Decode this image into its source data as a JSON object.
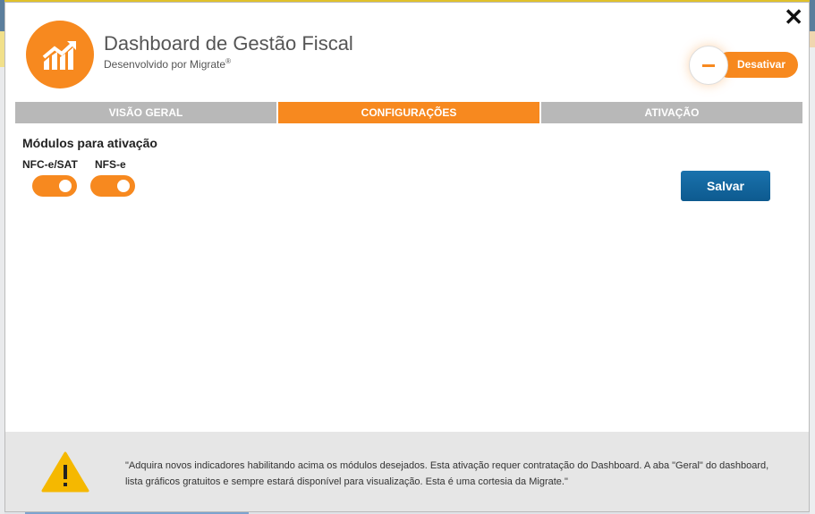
{
  "header": {
    "title": "Dashboard de Gestão Fiscal",
    "subtitle": "Desenvolvido por Migrate",
    "registered": "®",
    "deactivate_label": "Desativar"
  },
  "tabs": [
    {
      "label": "VISÃO GERAL",
      "active": false
    },
    {
      "label": "CONFIGURAÇÕES",
      "active": true
    },
    {
      "label": "ATIVAÇÃO",
      "active": false
    }
  ],
  "config": {
    "heading": "Módulos para ativação",
    "modules": [
      {
        "label": "NFC-e/SAT",
        "enabled": true
      },
      {
        "label": "NFS-e",
        "enabled": true
      }
    ],
    "save_label": "Salvar"
  },
  "footer": {
    "message": "\"Adquira novos indicadores habilitando acima os módulos desejados. Esta ativação requer contratação do Dashboard. A aba \"Geral\" do dashboard, lista gráficos gratuitos e sempre estará disponível para visualização. Esta é uma cortesia da Migrate.\""
  },
  "colors": {
    "accent": "#f7891f",
    "primary_button": "#0d5a8f",
    "tab_inactive": "#b8b8b8",
    "warning": "#f5b800"
  },
  "icons": {
    "close": "close-icon",
    "logo": "chart-growth-icon",
    "deactivate": "minus-icon",
    "warning": "warning-icon"
  }
}
